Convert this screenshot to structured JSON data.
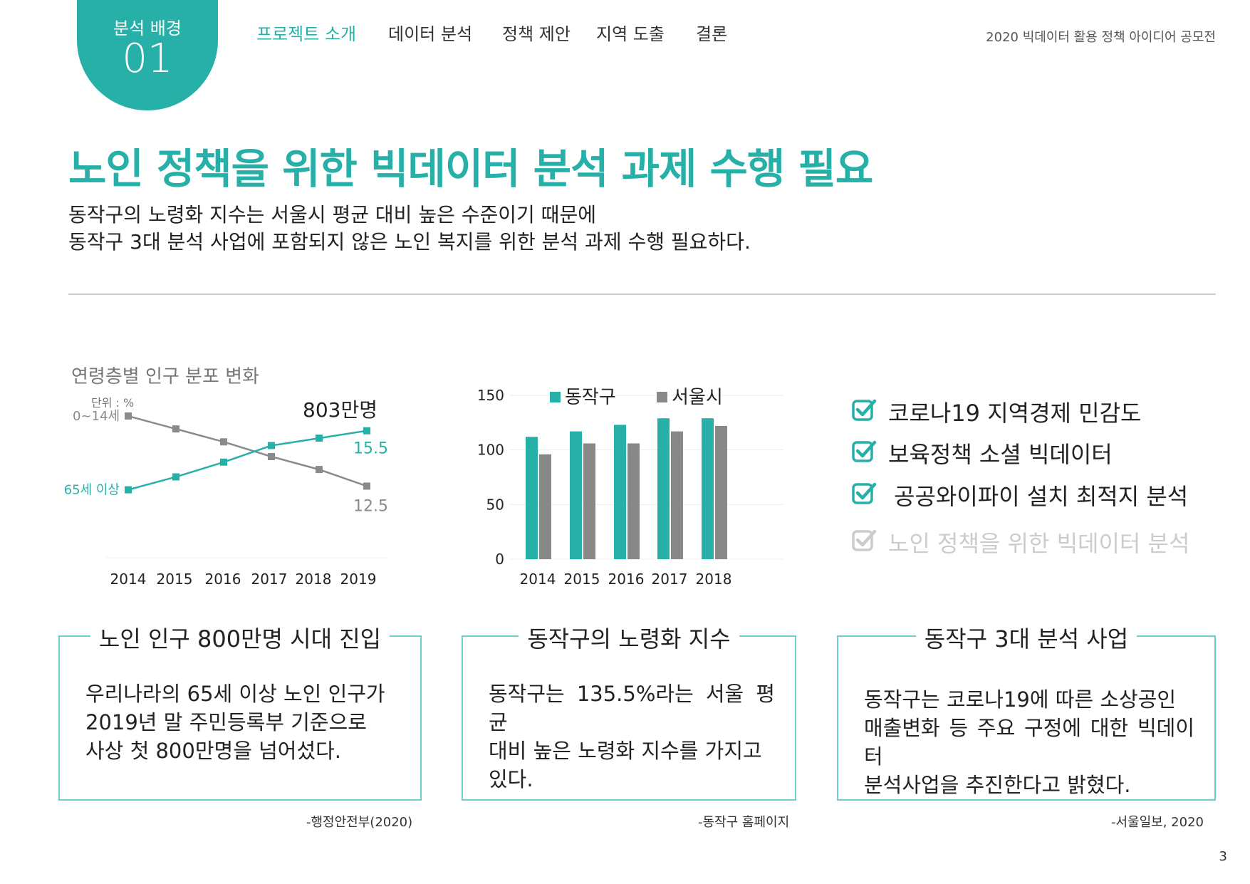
{
  "badge": {
    "label": "분석 배경",
    "number": "01"
  },
  "nav": [
    "프로젝트 소개",
    "데이터 분석",
    "정책 제안",
    "지역 도출",
    "결론"
  ],
  "contest": "2020 빅데이터 활용 정책 아이디어 공모전",
  "title": "노인 정책을 위한 빅데이터 분석 과제 수행 필요",
  "subtitle_lines": [
    "동작구의 노령화 지수는 서울시 평균 대비 높은 수준이기 때문에",
    "동작구 3대 분석 사업에 포함되지 않은 노인 복지를 위한 분석 과제 수행 필요하다."
  ],
  "line_chart_title": "연령층별 인구 분포 변화",
  "line_chart_unit": "단위 : %",
  "bar_chart_title": "",
  "chart_data": [
    {
      "type": "line",
      "title": "연령층별 인구 분포 변화",
      "unit": "단위 : %",
      "x": [
        "2014",
        "2015",
        "2016",
        "2017",
        "2018",
        "2019"
      ],
      "series": [
        {
          "name": "0~14세",
          "values": [
            16.3,
            15.6,
            14.9,
            14.1,
            13.4,
            12.5
          ],
          "color": "#8a8a8a",
          "end_label": "12.5"
        },
        {
          "name": "65세 이상",
          "values": [
            12.3,
            13.0,
            13.8,
            14.7,
            15.1,
            15.5
          ],
          "color": "#26b0a8",
          "end_label": "15.5"
        }
      ],
      "annotation": "803만명",
      "ylim": [
        8.5,
        18
      ]
    },
    {
      "type": "bar",
      "categories": [
        "2014",
        "2015",
        "2016",
        "2017",
        "2018"
      ],
      "series": [
        {
          "name": "동작구",
          "values": [
            112,
            117,
            123,
            129,
            129
          ],
          "color": "#26b0a8"
        },
        {
          "name": "서울시",
          "values": [
            96,
            106,
            106,
            117,
            122
          ],
          "color": "#888888"
        }
      ],
      "yticks": [
        "0",
        "50",
        "100",
        "150"
      ],
      "ylim": [
        0,
        150
      ],
      "legend": "top"
    }
  ],
  "checklist": [
    {
      "text": "코로나19 지역경제 민감도",
      "active": true
    },
    {
      "text": "보육정책 소셜 빅데이터",
      "active": true
    },
    {
      "text": "공공와이파이 설치 최적지 분석",
      "active": true
    },
    {
      "text": "노인 정책을 위한 빅데이터 분석",
      "active": false
    }
  ],
  "icons": {
    "check": "check-box-icon"
  },
  "cards": [
    {
      "title": "노인 인구 800만명 시대 진입",
      "lines": [
        "우리나라의 65세 이상 노인 인구가",
        "2019년 말 주민등록부 기준으로",
        "사상 첫 800만명을 넘어섰다."
      ],
      "source": "-행정안전부(2020)"
    },
    {
      "title": "동작구의 노령화 지수",
      "lines": [
        "동작구는 135.5%라는 서울 평균",
        "대비 높은 노령화 지수를 가지고",
        "있다."
      ],
      "source": "-동작구 홈페이지"
    },
    {
      "title": "동작구 3대 분석 사업",
      "lines": [
        "동작구는 코로나19에 따른 소상공인",
        "매출변화 등 주요 구정에 대한 빅데이터",
        "분석사업을 추진한다고 밝혔다."
      ],
      "source": "-서울일보, 2020"
    }
  ],
  "page_number": "3",
  "colors": {
    "accent": "#26b0a8",
    "gray": "#888888",
    "card_border": "#6fcfc9"
  }
}
